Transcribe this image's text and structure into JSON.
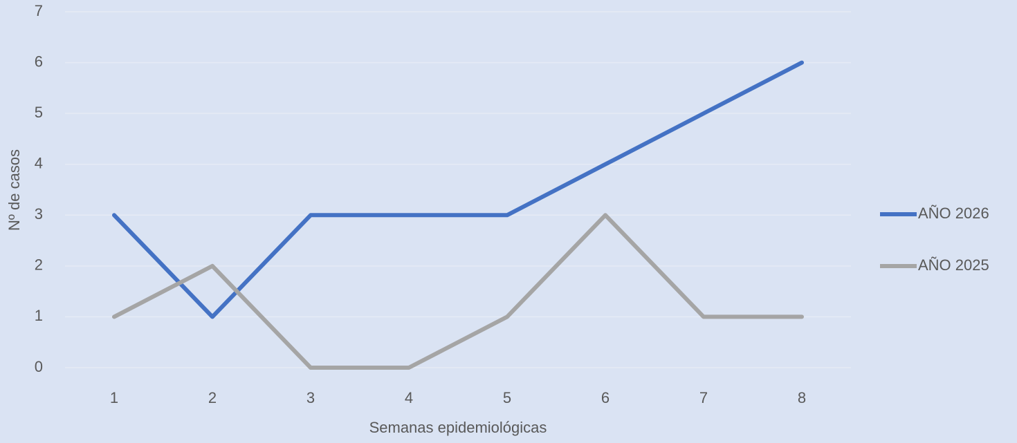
{
  "chart_data": {
    "type": "line",
    "x_label": "Semanas epidemiológicas",
    "y_label": "Nº de casos",
    "categories": [
      1,
      2,
      3,
      4,
      5,
      6,
      7,
      8
    ],
    "series": [
      {
        "name": "AÑO 2026",
        "color": "#4472c4",
        "values": [
          3,
          1,
          3,
          3,
          3,
          4,
          5,
          6
        ]
      },
      {
        "name": "AÑO 2025",
        "color": "#a5a5a5",
        "values": [
          1,
          2,
          0,
          0,
          1,
          3,
          1,
          1
        ]
      }
    ],
    "ylim": [
      0,
      7
    ],
    "yticks": [
      0,
      1,
      2,
      3,
      4,
      5,
      6,
      7
    ],
    "grid": true,
    "legend": "right"
  }
}
